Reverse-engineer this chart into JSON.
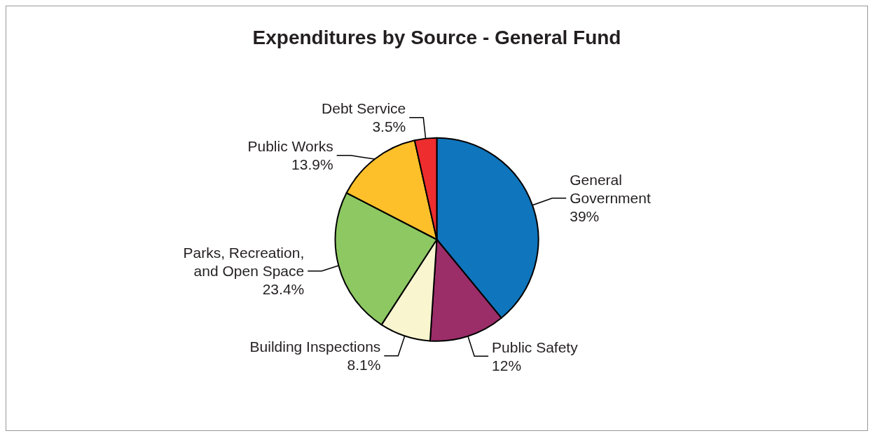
{
  "chart_data": {
    "type": "pie",
    "title": "Expenditures by Source - General Fund",
    "categories": [
      "General Government",
      "Public Safety",
      "Building Inspections",
      "Parks, Recreation, and Open Space",
      "Public Works",
      "Debt Service"
    ],
    "values": [
      39,
      12,
      8.1,
      23.4,
      13.9,
      3.5
    ],
    "value_labels": [
      "39%",
      "12%",
      "8.1%",
      "23.4%",
      "13.9%",
      "3.5%"
    ],
    "colors": [
      "#0f75bc",
      "#9b2d69",
      "#f8f5cf",
      "#8dc862",
      "#fdc02a",
      "#ed2d2e"
    ],
    "legend": false
  }
}
